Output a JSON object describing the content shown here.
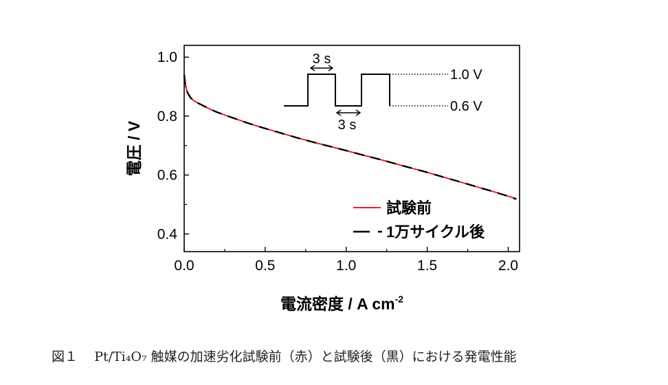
{
  "caption": {
    "figure_number": "図１",
    "text": "Pt/Ti₄O₇ 触媒の加速劣化試験前（赤）と試験後（黒）における発電性能"
  },
  "colors": {
    "before": "#e8202a",
    "after": "#000000"
  },
  "inset": {
    "time_top": "3 s",
    "time_bottom": "3 s",
    "high_label": "1.0 V",
    "low_label": "0.6 V"
  },
  "chart_data": {
    "type": "line",
    "xlabel": "電流密度 / A cm",
    "xlabel_sup": "-2",
    "ylabel": "電圧 / V",
    "xlim": [
      0,
      2.07
    ],
    "ylim": [
      0.34,
      1.04
    ],
    "xticks": [
      0.0,
      0.5,
      1.0,
      1.5,
      2.0
    ],
    "xtick_labels": [
      "0.0",
      "0.5",
      "1.0",
      "1.5",
      "2.0"
    ],
    "yticks": [
      0.4,
      0.6,
      0.8,
      1.0
    ],
    "ytick_labels": [
      "0.4",
      "0.6",
      "0.8",
      "1.0"
    ],
    "grid": false,
    "legend": "bottom-right",
    "series": [
      {
        "name": "試験前",
        "style": "solid",
        "x": [
          0.0,
          0.005,
          0.01,
          0.02,
          0.04,
          0.06,
          0.1,
          0.15,
          0.2,
          0.3,
          0.4,
          0.5,
          0.6,
          0.7,
          0.8,
          0.9,
          1.0,
          1.1,
          1.2,
          1.3,
          1.4,
          1.5,
          1.6,
          1.7,
          1.8,
          1.9,
          2.0,
          2.05
        ],
        "y": [
          0.94,
          0.915,
          0.9,
          0.88,
          0.862,
          0.852,
          0.84,
          0.826,
          0.814,
          0.794,
          0.775,
          0.758,
          0.742,
          0.726,
          0.711,
          0.697,
          0.683,
          0.668,
          0.654,
          0.639,
          0.624,
          0.609,
          0.593,
          0.577,
          0.561,
          0.545,
          0.528,
          0.52
        ]
      },
      {
        "name": "1万サイクル後",
        "style": "dashed",
        "x": [
          0.0,
          0.005,
          0.01,
          0.02,
          0.04,
          0.06,
          0.1,
          0.15,
          0.2,
          0.3,
          0.4,
          0.5,
          0.6,
          0.7,
          0.8,
          0.9,
          1.0,
          1.1,
          1.2,
          1.3,
          1.4,
          1.5,
          1.6,
          1.7,
          1.8,
          1.9,
          2.0,
          2.05
        ],
        "y": [
          0.94,
          0.915,
          0.9,
          0.88,
          0.862,
          0.852,
          0.84,
          0.826,
          0.814,
          0.794,
          0.775,
          0.758,
          0.742,
          0.726,
          0.711,
          0.697,
          0.683,
          0.668,
          0.654,
          0.639,
          0.624,
          0.609,
          0.593,
          0.577,
          0.561,
          0.545,
          0.528,
          0.518
        ]
      }
    ]
  }
}
